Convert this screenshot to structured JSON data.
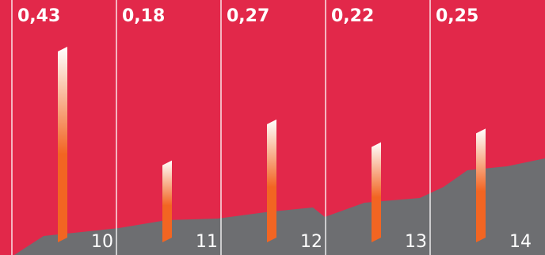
{
  "chart_data": {
    "type": "bar",
    "categories": [
      "10",
      "11",
      "12",
      "13",
      "14"
    ],
    "values": [
      0.43,
      0.18,
      0.27,
      0.22,
      0.25
    ],
    "value_labels": [
      "0,43",
      "0,18",
      "0,27",
      "0,22",
      "0,25"
    ],
    "ylim": [
      0,
      0.47
    ],
    "grid": false,
    "legend": "none",
    "colors": {
      "background": "#e2284a",
      "divider": "#ffffff",
      "bar_top": "#ffffff",
      "bar_bottom": "#f26522",
      "area": "#6d6e71"
    }
  }
}
